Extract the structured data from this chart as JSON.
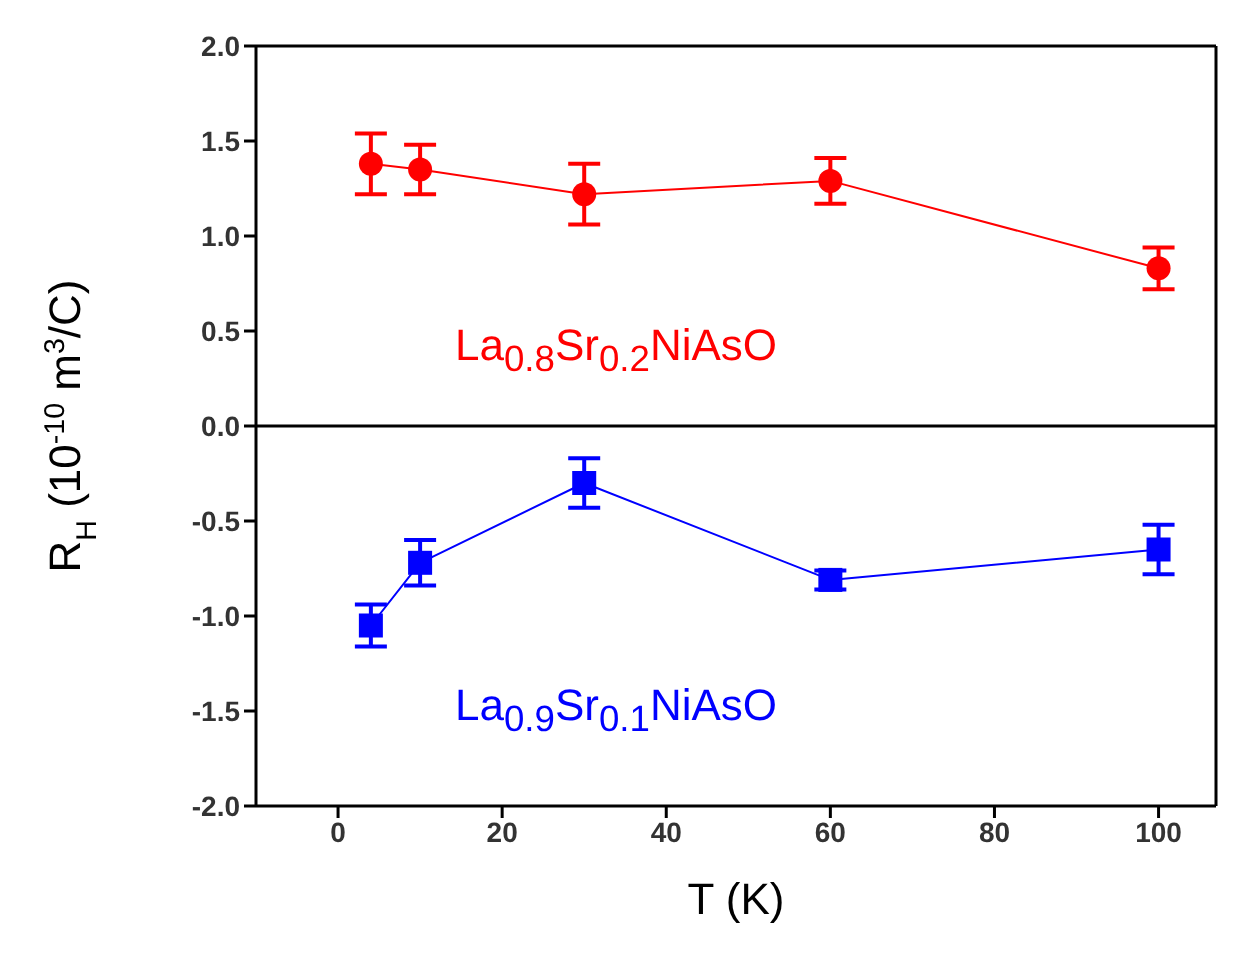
{
  "chart_data": {
    "type": "line",
    "xlabel": "T (K)",
    "ylabel": "R$_{H}$ (10$^{-10}$ m$^{3}$/C)",
    "xlim": [
      -10,
      107
    ],
    "xticks": [
      0,
      20,
      40,
      60,
      80,
      100
    ],
    "ylim": [
      -2,
      2
    ],
    "yticks": [
      {
        "value": -2,
        "label": "-2.0"
      },
      {
        "value": -1.5,
        "label": "-1.5"
      },
      {
        "value": -1,
        "label": "-1.0"
      },
      {
        "value": -0.5,
        "label": "-0.5"
      },
      {
        "value": 0,
        "label": "0.0"
      },
      {
        "value": 0.5,
        "label": "0.5"
      },
      {
        "value": 1,
        "label": "1.0"
      },
      {
        "value": 1.5,
        "label": "1.5"
      },
      {
        "value": 2,
        "label": "2.0"
      }
    ],
    "legend": false,
    "line_style": "solid",
    "ref_lines": [
      {
        "axis": "y",
        "value": 0,
        "color": "#000000"
      }
    ],
    "series": [
      {
        "name": "La$_{0.8}$Sr$_{0.2}$NiAsO",
        "color": "#ff0000",
        "marker": "circle",
        "x": [
          4,
          10,
          30,
          60,
          100
        ],
        "values": [
          1.38,
          1.35,
          1.22,
          1.29,
          0.83
        ],
        "errors": [
          0.16,
          0.13,
          0.16,
          0.12,
          0.11
        ]
      },
      {
        "name": "La$_{0.9}$Sr$_{0.1}$NiAsO",
        "color": "#0000ff",
        "marker": "square",
        "x": [
          4,
          10,
          30,
          60,
          100
        ],
        "values": [
          -1.05,
          -0.72,
          -0.3,
          -0.81,
          -0.65
        ],
        "errors": [
          0.11,
          0.12,
          0.13,
          0.05,
          0.13
        ]
      }
    ]
  }
}
